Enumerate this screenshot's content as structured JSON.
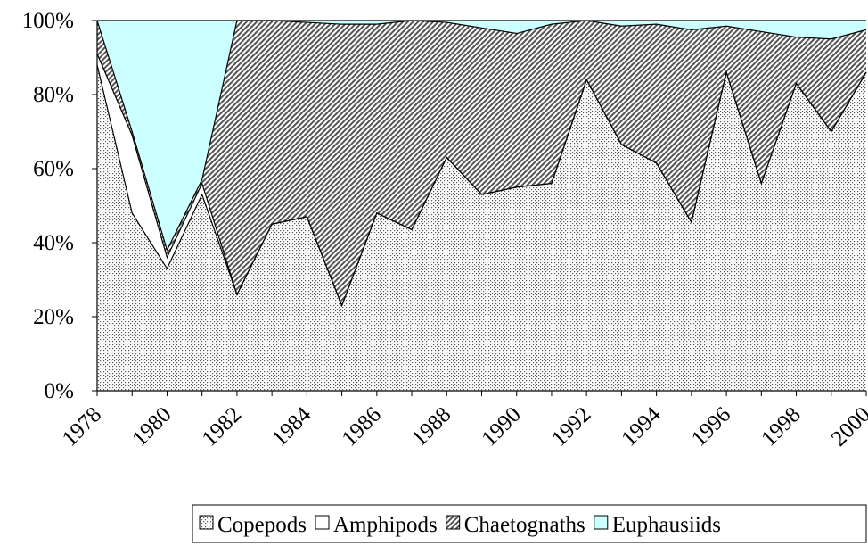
{
  "chart_data": {
    "type": "stacked-area-100",
    "categories": [
      "1978",
      null,
      "1980",
      null,
      "1982",
      null,
      "1984",
      null,
      "1986",
      null,
      "1988",
      null,
      "1990",
      null,
      "1992",
      null,
      "1994",
      null,
      "1996",
      null,
      "1998",
      null,
      "2000"
    ],
    "ylim": [
      0,
      100
    ],
    "yticks": [
      {
        "value": 0,
        "label": "0%"
      },
      {
        "value": 20,
        "label": "20%"
      },
      {
        "value": 40,
        "label": "40%"
      },
      {
        "value": 60,
        "label": "60%"
      },
      {
        "value": 80,
        "label": "80%"
      },
      {
        "value": 100,
        "label": "100%"
      }
    ],
    "series": [
      {
        "name": "Copepods",
        "color": "#808080",
        "pattern": "dots",
        "values": [
          88,
          48,
          33,
          53,
          26,
          45,
          47,
          23,
          48,
          43.5,
          63,
          53,
          55,
          56,
          84,
          66.5,
          61.5,
          45.5,
          86,
          56,
          83,
          70,
          86
        ]
      },
      {
        "name": "Amphipods",
        "color": "#ffffff",
        "pattern": "none",
        "values": [
          3,
          21,
          3,
          3,
          0,
          0,
          0,
          0,
          0,
          0,
          0,
          0,
          0,
          0,
          0,
          0,
          0,
          0,
          0,
          0,
          0,
          0,
          0
        ]
      },
      {
        "name": "Chaetognaths",
        "color": "#606060",
        "pattern": "hatch",
        "values": [
          9,
          1,
          2,
          1,
          74,
          55,
          52.5,
          76,
          51,
          56.5,
          36.5,
          45,
          41.5,
          43,
          16,
          32,
          37.5,
          52,
          12.5,
          41,
          12.5,
          25,
          11.5
        ]
      },
      {
        "name": "Euphausiids",
        "color": "#ccffff",
        "pattern": "none",
        "values": [
          0,
          30,
          62,
          43,
          0,
          0,
          0.5,
          1,
          1,
          0,
          0.5,
          2,
          3.5,
          1,
          0,
          1.5,
          1,
          2.5,
          1.5,
          3,
          4.5,
          5,
          2.5
        ]
      }
    ]
  }
}
